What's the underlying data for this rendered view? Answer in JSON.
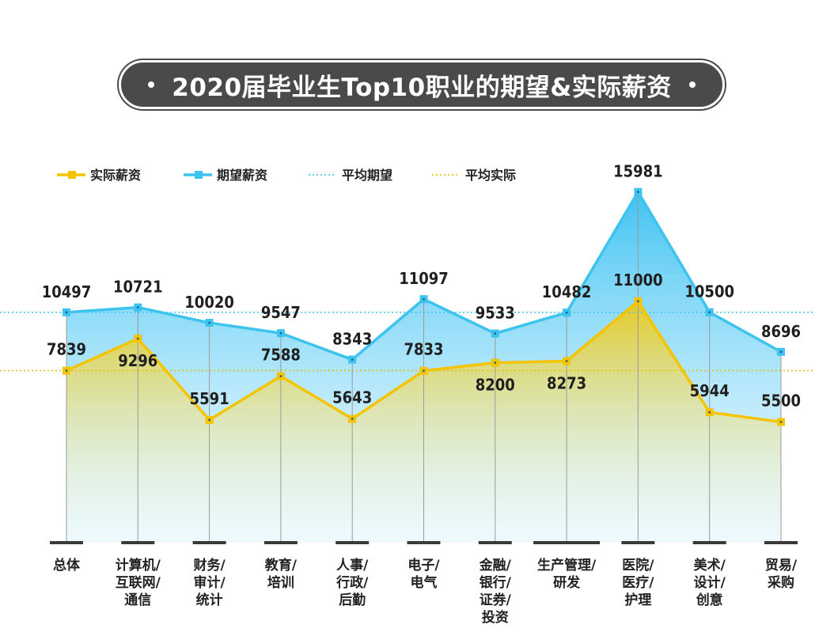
{
  "title": "2020届毕业生Top10职业的期望&实际薪资",
  "chart_data": {
    "type": "line",
    "title": "2020届毕业生Top10职业的期望&实际薪资",
    "categories": [
      [
        "总体"
      ],
      [
        "计算机/",
        "互联网/",
        "通信"
      ],
      [
        "财务/",
        "审计/",
        "统计"
      ],
      [
        "教育/",
        "培训"
      ],
      [
        "人事/",
        "行政/",
        "后勤"
      ],
      [
        "电子/",
        "电气"
      ],
      [
        "金融/",
        "银行/",
        "证券/",
        "投资"
      ],
      [
        "生产管理/",
        "研发"
      ],
      [
        "医院/",
        "医疗/",
        "护理"
      ],
      [
        "美术/",
        "设计/",
        "创意"
      ],
      [
        "贸易/",
        "采购"
      ]
    ],
    "series": [
      {
        "name": "实际薪资",
        "color": "#f5c400",
        "values": [
          7839,
          9296,
          5591,
          7588,
          5643,
          7833,
          8200,
          8273,
          11000,
          5944,
          5500
        ]
      },
      {
        "name": "期望薪资",
        "color": "#3cc3ee",
        "values": [
          10497,
          10721,
          10020,
          9547,
          8343,
          11097,
          9533,
          10482,
          15981,
          10500,
          8696
        ]
      }
    ],
    "reference_lines": [
      {
        "name": "平均期望",
        "color": "#3cc3ee",
        "value": 10497
      },
      {
        "name": "平均实际",
        "color": "#e0c000",
        "value": 7839
      }
    ],
    "legend_position": "top-left",
    "ylim": [
      0,
      16500
    ]
  }
}
